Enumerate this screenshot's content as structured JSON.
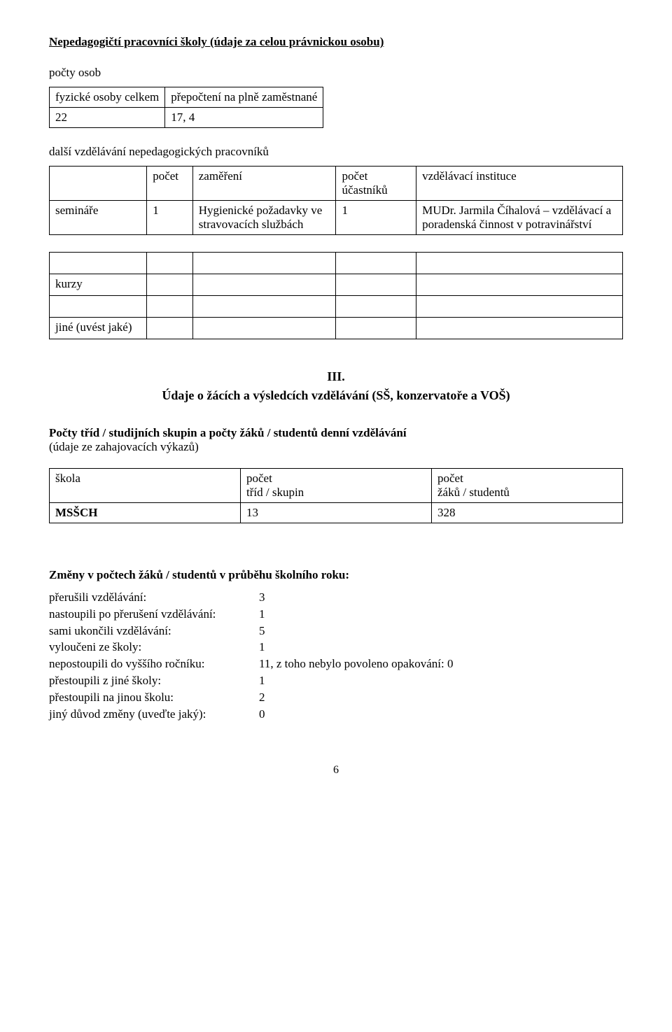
{
  "title_line": "Nepedagogičtí pracovníci školy (údaje za celou právnickou osobu)",
  "counts_label": "počty osob",
  "small_table": {
    "headers": [
      "fyzické osoby celkem",
      "přepočtení na plně zaměstnané"
    ],
    "row": [
      "22",
      "17, 4"
    ]
  },
  "further_training_label": "další vzdělávání nepedagogických pracovníků",
  "training_table": {
    "header": [
      "",
      "počet",
      "zaměření",
      "počet účastníků",
      "vzdělávací instituce"
    ],
    "row": [
      "semináře",
      "1",
      "Hygienické požadavky ve stravovacích službách",
      "1",
      "MUDr. Jarmila Číhalová – vzdělávací a poradenská činnost v potravinářství"
    ]
  },
  "empty_table": {
    "row1": [
      "",
      "",
      "",
      "",
      ""
    ],
    "row2": [
      "kurzy",
      "",
      "",
      "",
      ""
    ],
    "row3": [
      "",
      "",
      "",
      "",
      ""
    ],
    "row4": [
      "jiné (uvést jaké)",
      "",
      "",
      "",
      ""
    ]
  },
  "section3": {
    "num": "III.",
    "title": "Údaje o žácích a výsledcích vzdělávání (SŠ, konzervatoře a VOŠ)"
  },
  "class_counts": {
    "heading": "Počty tříd / studijních skupin a počty žáků / studentů denní vzdělávání",
    "sub": "(údaje ze zahajovacích výkazů)",
    "table_header": [
      "škola",
      "počet tříd / skupin",
      "počet žáků / studentů"
    ],
    "row": [
      "MSŠCH",
      "13",
      "328"
    ]
  },
  "changes": {
    "heading": "Změny v počtech žáků / studentů v průběhu školního roku:",
    "items": [
      {
        "label": "přerušili vzdělávání:",
        "value": "3"
      },
      {
        "label": "nastoupili po přerušení vzdělávání:",
        "value": "1"
      },
      {
        "label": "sami ukončili vzdělávání:",
        "value": "5"
      },
      {
        "label": "vyloučeni ze školy:",
        "value": "1"
      },
      {
        "label": "nepostoupili do vyššího ročníku:",
        "value": "11, z toho nebylo povoleno opakování: 0"
      },
      {
        "label": "přestoupili z jiné školy:",
        "value": "1"
      },
      {
        "label": "přestoupili na jinou školu:",
        "value": "2"
      },
      {
        "label": "jiný důvod změny (uveďte jaký):",
        "value": "0"
      }
    ]
  },
  "page_number": "6"
}
